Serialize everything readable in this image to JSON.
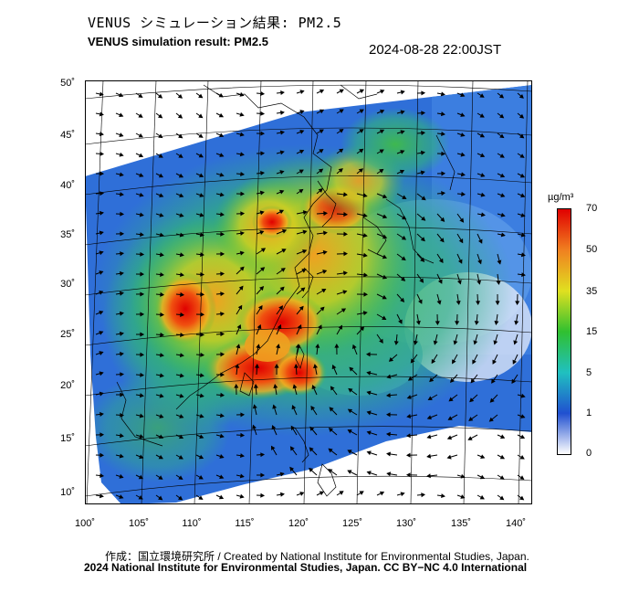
{
  "header": {
    "title_jp": "VENUS シミュレーション結果: PM2.5",
    "title_en": "VENUS simulation result: PM2.5",
    "timestamp": "2024-08-28 22:00JST"
  },
  "map": {
    "lat_labels": [
      "50˚",
      "45˚",
      "40˚",
      "35˚",
      "30˚",
      "25˚",
      "20˚",
      "15˚",
      "10˚"
    ],
    "lon_labels": [
      "100˚",
      "105˚",
      "110˚",
      "115˚",
      "120˚",
      "125˚",
      "130˚",
      "135˚",
      "140˚"
    ]
  },
  "colorbar": {
    "unit": "µg/m³",
    "ticks": [
      "70",
      "50",
      "35",
      "15",
      "5",
      "1",
      "0"
    ],
    "colors": [
      "#ffffff",
      "#2050d0",
      "#20c0c0",
      "#30c030",
      "#e0e020",
      "#f08020",
      "#e00000"
    ]
  },
  "footer": {
    "credit_line1": "作成：国立環境研究所 / Created by National Institute for Environmental Studies, Japan.",
    "credit_line2": "2024 National Institute for Environmental Studies, Japan. CC BY−NC 4.0 International"
  }
}
